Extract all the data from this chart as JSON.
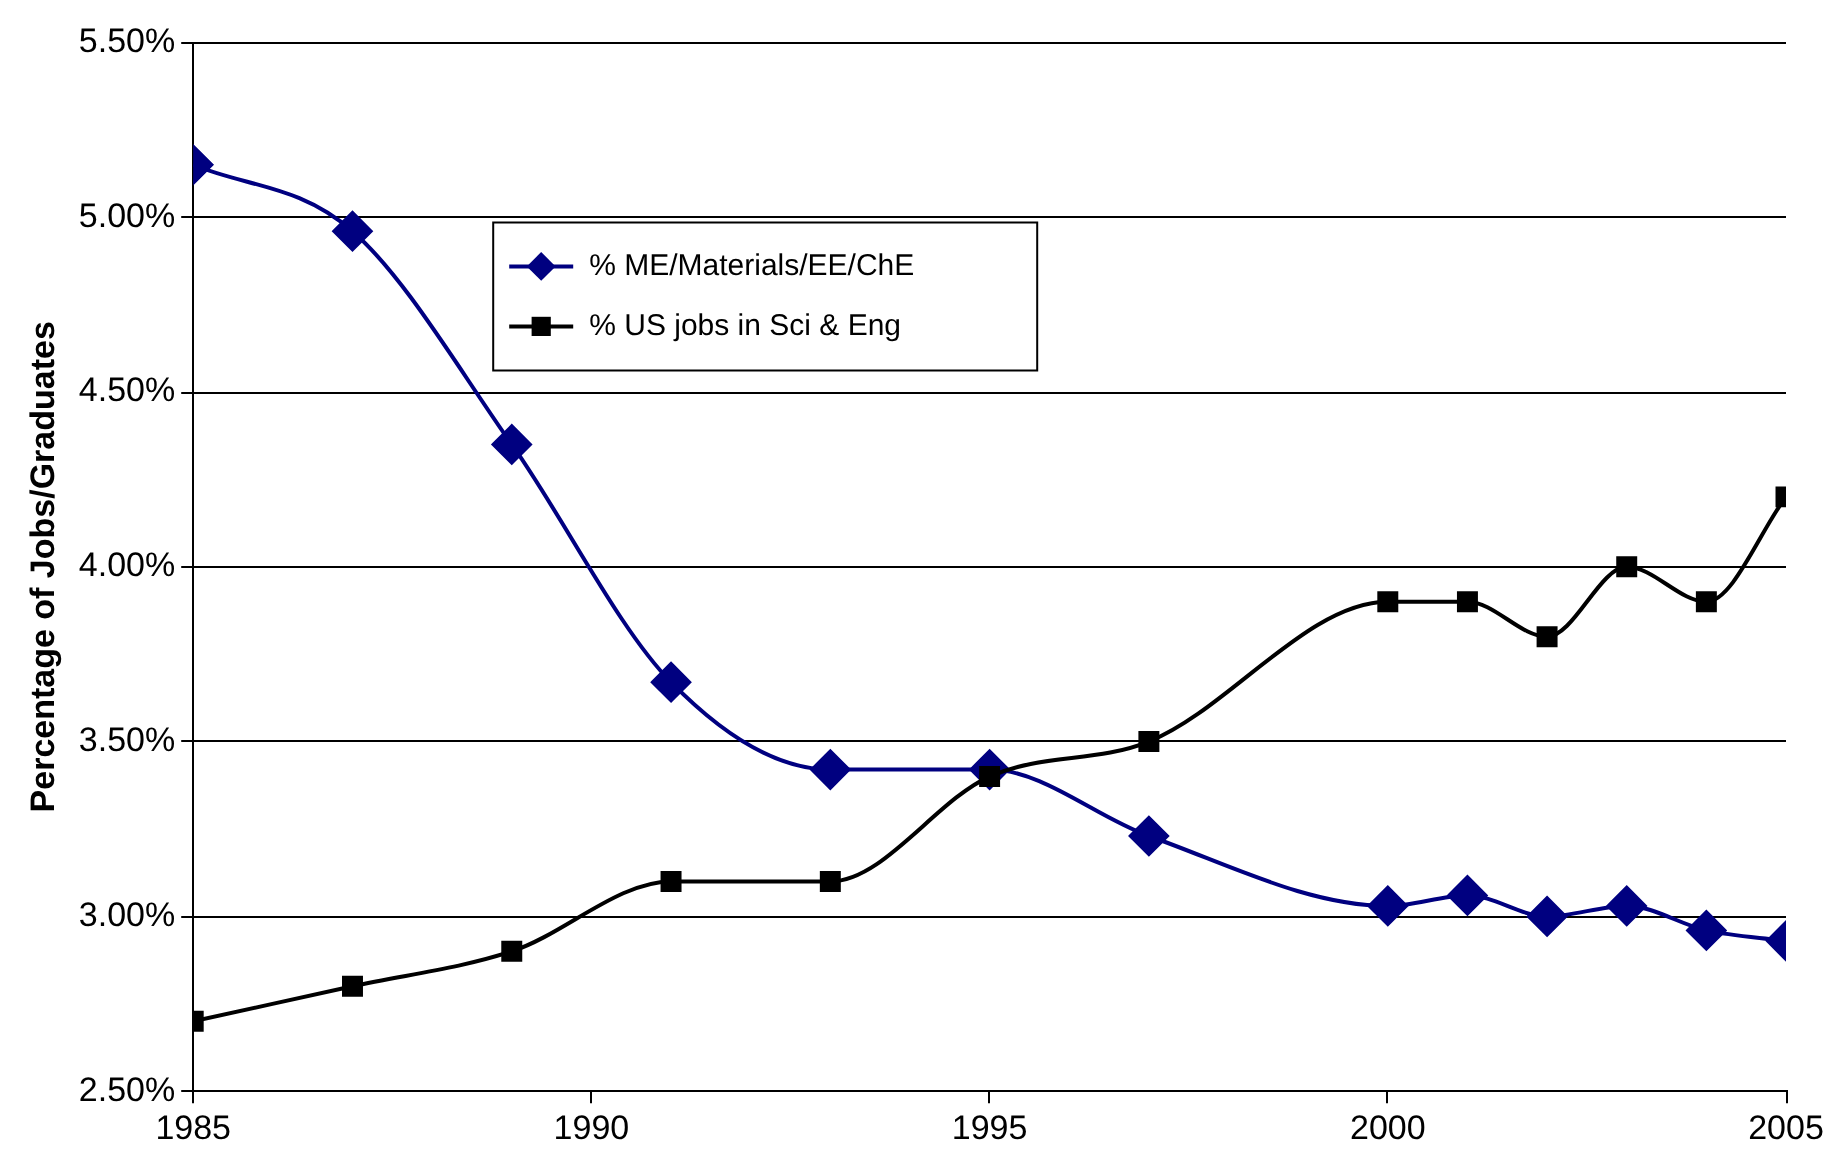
{
  "chart_data": {
    "type": "line",
    "ylabel": "Percentage of Jobs/Graduates",
    "xlim": [
      1985,
      2005
    ],
    "xticks": [
      1985,
      1990,
      1995,
      2000,
      2005
    ],
    "ylim": [
      2.5,
      5.5
    ],
    "yticks": [
      {
        "value": 2.5,
        "label": "2.50%"
      },
      {
        "value": 3,
        "label": "3.00%"
      },
      {
        "value": 3.5,
        "label": "3.50%"
      },
      {
        "value": 4,
        "label": "4.00%"
      },
      {
        "value": 4.5,
        "label": "4.50%"
      },
      {
        "value": 5,
        "label": "5.00%"
      },
      {
        "value": 5.5,
        "label": "5.50%"
      }
    ],
    "grid": "y",
    "legend": "top left",
    "line_style": "solid",
    "x": [
      1985,
      1987,
      1989,
      1991,
      1993,
      1995,
      1997,
      2000,
      2001,
      2002,
      2003,
      2004,
      2005
    ],
    "series": [
      {
        "name": "% ME/Materials/EE/ChE",
        "color": "#000080",
        "marker": "diamond",
        "values": [
          5.15,
          4.96,
          4.35,
          3.67,
          3.42,
          3.42,
          3.23,
          3.03,
          3.06,
          3.0,
          3.03,
          2.96,
          2.93
        ]
      },
      {
        "name": "% US jobs in Sci & Eng",
        "color": "#000000",
        "marker": "square",
        "values": [
          2.7,
          2.8,
          2.9,
          3.1,
          3.1,
          3.4,
          3.5,
          3.9,
          3.9,
          3.8,
          4.0,
          3.9,
          4.2
        ]
      }
    ]
  }
}
